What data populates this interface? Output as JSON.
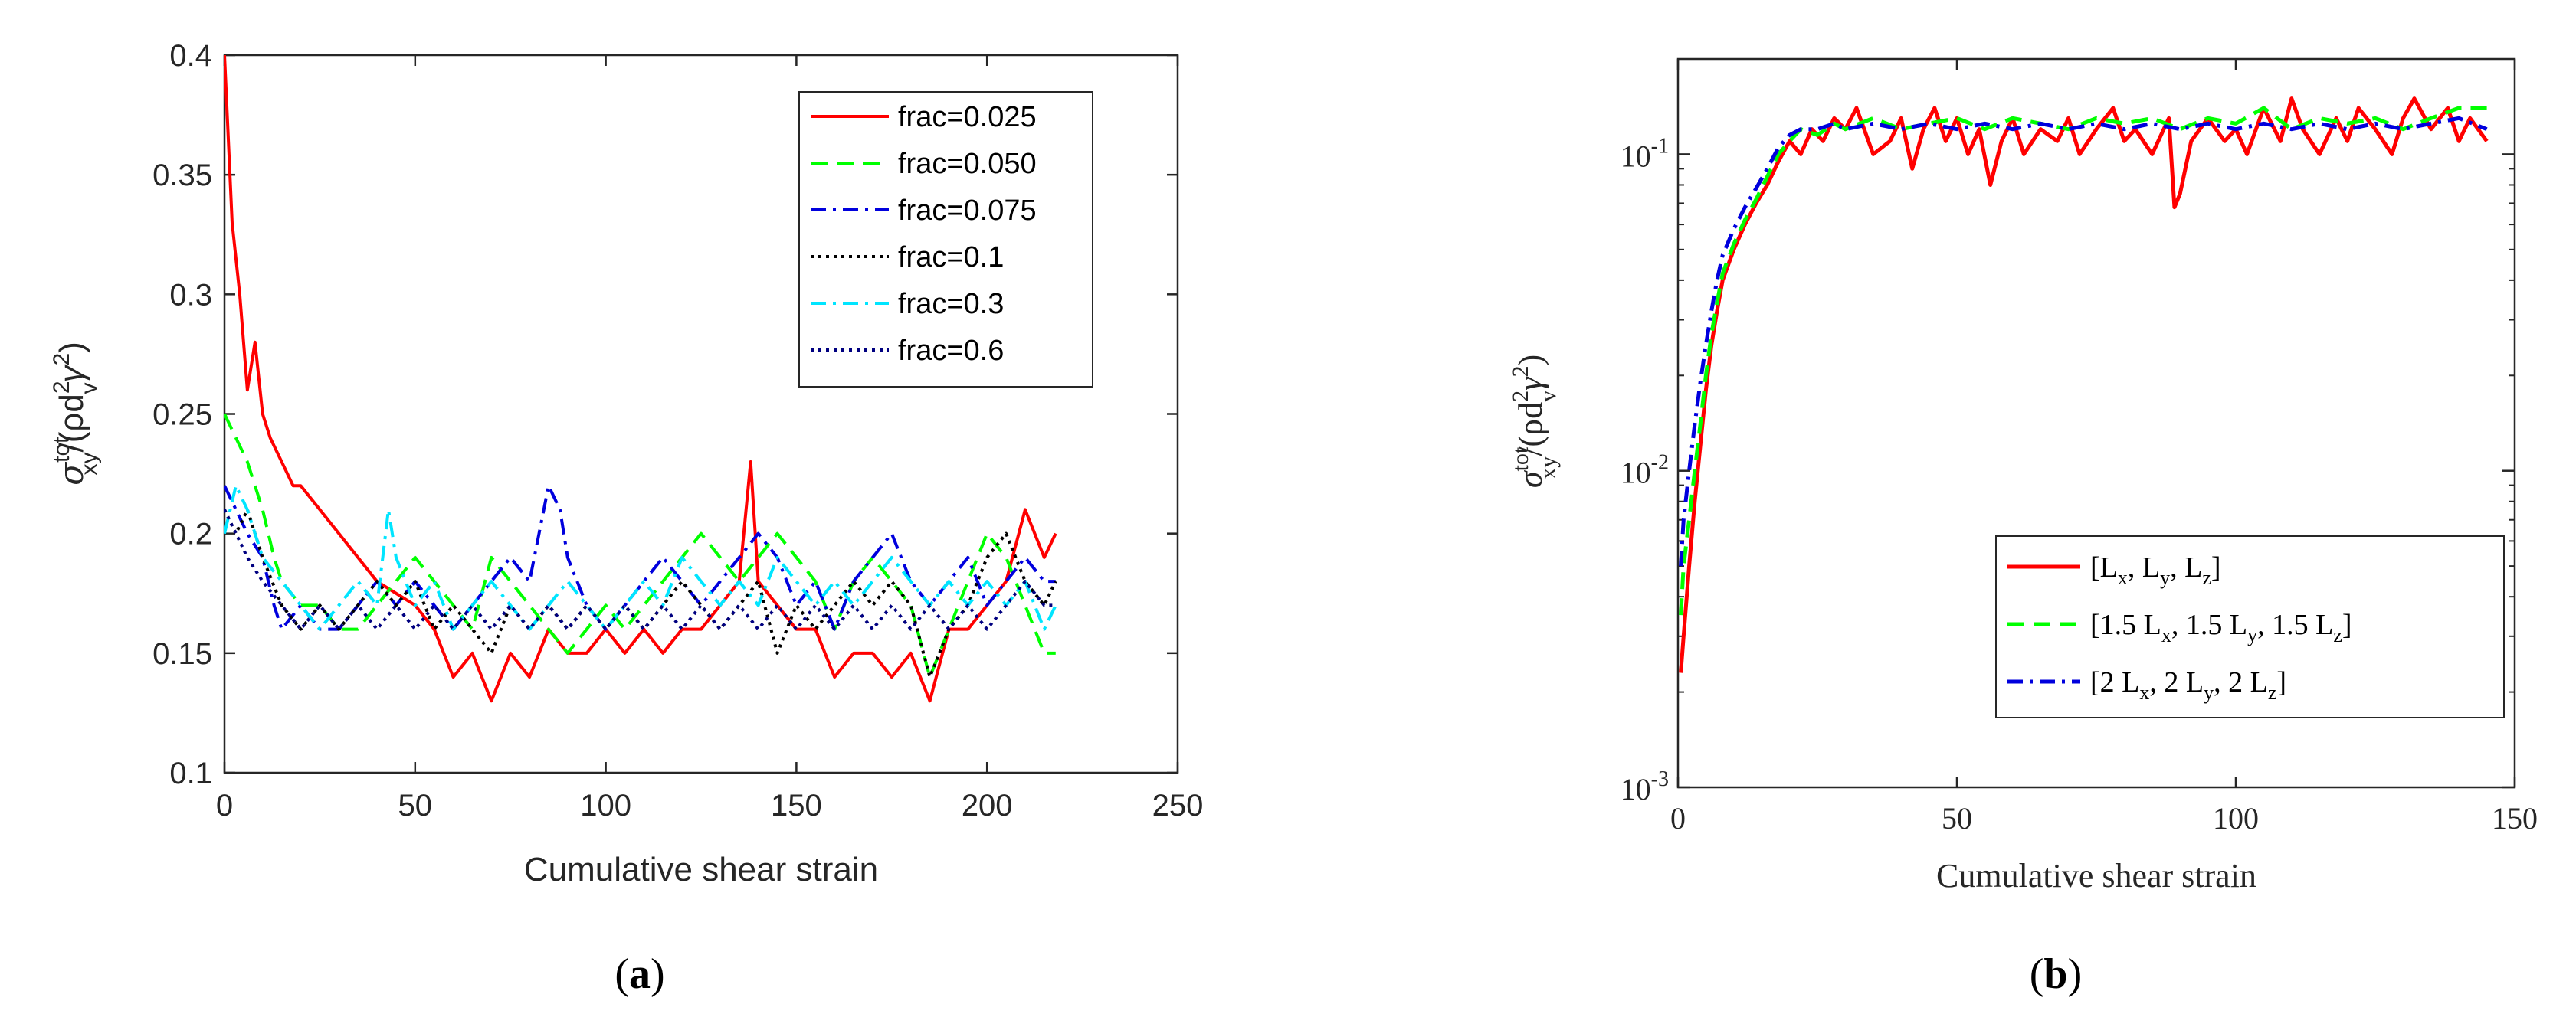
{
  "chart_data": [
    {
      "panel": "a",
      "type": "line",
      "title": "",
      "xlabel": "Cumulative shear strain",
      "ylabel_base": "σ",
      "ylabel_sup": "tot",
      "ylabel_sub": "xy",
      "ylabel_rest": "/(ρd",
      "ylabel_sup2": "2",
      "ylabel_sub2": "v",
      "ylabel_gamma": "γ",
      "ylabel_sup3": "2",
      "ylabel_close": ")",
      "xlim": [
        0,
        250
      ],
      "ylim": [
        0.1,
        0.4
      ],
      "xticks": [
        0,
        50,
        100,
        150,
        200,
        250
      ],
      "xtick_labels": [
        "0",
        "50",
        "100",
        "150",
        "200",
        "250"
      ],
      "yticks": [
        0.1,
        0.15,
        0.2,
        0.25,
        0.3,
        0.35,
        0.4
      ],
      "ytick_labels": [
        "0.1",
        "0.15",
        "0.2",
        "0.25",
        "0.3",
        "0.35",
        "0.4"
      ],
      "legend_position": "top-right",
      "series": [
        {
          "name": "frac=0.025",
          "color": "#ff0000",
          "dash": "solid",
          "x": [
            0,
            2,
            4,
            6,
            8,
            10,
            12,
            15,
            18,
            20,
            25,
            30,
            35,
            40,
            45,
            50,
            55,
            60,
            65,
            70,
            75,
            80,
            85,
            90,
            95,
            100,
            105,
            110,
            115,
            120,
            125,
            130,
            135,
            138,
            140,
            145,
            150,
            155,
            160,
            165,
            170,
            175,
            180,
            185,
            190,
            195,
            200,
            205,
            210,
            215,
            218
          ],
          "y": [
            0.4,
            0.33,
            0.3,
            0.26,
            0.28,
            0.25,
            0.24,
            0.23,
            0.22,
            0.22,
            0.21,
            0.2,
            0.19,
            0.18,
            0.175,
            0.17,
            0.16,
            0.14,
            0.15,
            0.13,
            0.15,
            0.14,
            0.16,
            0.15,
            0.15,
            0.16,
            0.15,
            0.16,
            0.15,
            0.16,
            0.16,
            0.17,
            0.18,
            0.23,
            0.18,
            0.17,
            0.16,
            0.16,
            0.14,
            0.15,
            0.15,
            0.14,
            0.15,
            0.13,
            0.16,
            0.16,
            0.17,
            0.18,
            0.21,
            0.19,
            0.2
          ]
        },
        {
          "name": "frac=0.050",
          "color": "#00ff00",
          "dash": "dashed",
          "x": [
            0,
            3,
            6,
            10,
            13,
            15,
            20,
            25,
            30,
            35,
            40,
            45,
            50,
            55,
            60,
            65,
            70,
            75,
            80,
            85,
            90,
            95,
            100,
            105,
            110,
            115,
            120,
            125,
            130,
            135,
            140,
            145,
            150,
            155,
            160,
            165,
            170,
            175,
            180,
            185,
            190,
            195,
            200,
            205,
            210,
            215,
            218
          ],
          "y": [
            0.25,
            0.24,
            0.23,
            0.21,
            0.19,
            0.18,
            0.17,
            0.17,
            0.16,
            0.16,
            0.17,
            0.18,
            0.19,
            0.18,
            0.17,
            0.16,
            0.19,
            0.18,
            0.17,
            0.16,
            0.15,
            0.16,
            0.17,
            0.16,
            0.17,
            0.18,
            0.19,
            0.2,
            0.19,
            0.18,
            0.19,
            0.2,
            0.19,
            0.18,
            0.16,
            0.18,
            0.19,
            0.18,
            0.17,
            0.14,
            0.16,
            0.18,
            0.2,
            0.19,
            0.17,
            0.15,
            0.15
          ]
        },
        {
          "name": "frac=0.075",
          "color": "#0000dd",
          "dash": "dashdot",
          "x": [
            0,
            3,
            6,
            10,
            13,
            15,
            20,
            25,
            30,
            35,
            40,
            45,
            50,
            55,
            60,
            65,
            70,
            75,
            80,
            85,
            88,
            90,
            95,
            100,
            105,
            110,
            115,
            120,
            125,
            130,
            135,
            140,
            145,
            150,
            155,
            160,
            165,
            170,
            175,
            180,
            185,
            190,
            195,
            200,
            205,
            210,
            215,
            218
          ],
          "y": [
            0.22,
            0.21,
            0.2,
            0.19,
            0.17,
            0.16,
            0.17,
            0.16,
            0.16,
            0.17,
            0.18,
            0.17,
            0.18,
            0.17,
            0.16,
            0.17,
            0.18,
            0.19,
            0.18,
            0.22,
            0.21,
            0.19,
            0.17,
            0.16,
            0.17,
            0.18,
            0.19,
            0.18,
            0.17,
            0.18,
            0.19,
            0.2,
            0.19,
            0.17,
            0.18,
            0.16,
            0.18,
            0.19,
            0.2,
            0.18,
            0.17,
            0.18,
            0.19,
            0.17,
            0.18,
            0.19,
            0.18,
            0.18
          ]
        },
        {
          "name": "frac=0.1",
          "color": "#000000",
          "dash": "dotted",
          "x": [
            0,
            3,
            6,
            10,
            15,
            20,
            25,
            30,
            35,
            40,
            45,
            50,
            55,
            60,
            65,
            70,
            75,
            80,
            85,
            90,
            95,
            100,
            105,
            110,
            115,
            120,
            125,
            130,
            135,
            140,
            145,
            150,
            155,
            160,
            165,
            170,
            175,
            180,
            185,
            190,
            195,
            200,
            205,
            210,
            215,
            218
          ],
          "y": [
            0.21,
            0.2,
            0.21,
            0.19,
            0.17,
            0.16,
            0.17,
            0.16,
            0.17,
            0.18,
            0.17,
            0.18,
            0.16,
            0.17,
            0.16,
            0.15,
            0.17,
            0.16,
            0.17,
            0.16,
            0.17,
            0.16,
            0.17,
            0.16,
            0.17,
            0.18,
            0.17,
            0.16,
            0.17,
            0.18,
            0.15,
            0.17,
            0.16,
            0.17,
            0.18,
            0.17,
            0.18,
            0.17,
            0.14,
            0.16,
            0.17,
            0.19,
            0.2,
            0.18,
            0.17,
            0.18
          ]
        },
        {
          "name": "frac=0.3",
          "color": "#00e5ff",
          "dash": "dashdot",
          "x": [
            0,
            3,
            6,
            10,
            15,
            20,
            25,
            30,
            35,
            40,
            43,
            45,
            50,
            55,
            60,
            65,
            70,
            75,
            80,
            85,
            90,
            95,
            100,
            105,
            110,
            115,
            120,
            125,
            130,
            135,
            140,
            145,
            150,
            155,
            160,
            165,
            170,
            175,
            180,
            185,
            190,
            195,
            200,
            205,
            210,
            215,
            218
          ],
          "y": [
            0.2,
            0.22,
            0.21,
            0.19,
            0.18,
            0.17,
            0.16,
            0.17,
            0.18,
            0.17,
            0.21,
            0.19,
            0.17,
            0.18,
            0.16,
            0.17,
            0.18,
            0.17,
            0.16,
            0.17,
            0.18,
            0.17,
            0.16,
            0.17,
            0.18,
            0.17,
            0.19,
            0.18,
            0.17,
            0.18,
            0.17,
            0.19,
            0.18,
            0.17,
            0.18,
            0.17,
            0.18,
            0.19,
            0.18,
            0.17,
            0.18,
            0.17,
            0.18,
            0.17,
            0.18,
            0.16,
            0.17
          ]
        },
        {
          "name": "frac=0.6",
          "color": "#000080",
          "dash": "dotted",
          "x": [
            0,
            3,
            6,
            10,
            15,
            20,
            25,
            30,
            35,
            40,
            45,
            50,
            55,
            60,
            65,
            70,
            75,
            80,
            85,
            90,
            95,
            100,
            105,
            110,
            115,
            120,
            125,
            130,
            135,
            140,
            145,
            150,
            155,
            160,
            165,
            170,
            175,
            180,
            185,
            190,
            195,
            200,
            205,
            210,
            215,
            218
          ],
          "y": [
            0.21,
            0.2,
            0.19,
            0.18,
            0.17,
            0.16,
            0.17,
            0.16,
            0.17,
            0.16,
            0.17,
            0.16,
            0.17,
            0.16,
            0.17,
            0.16,
            0.17,
            0.16,
            0.17,
            0.16,
            0.17,
            0.16,
            0.17,
            0.16,
            0.17,
            0.16,
            0.17,
            0.16,
            0.17,
            0.16,
            0.17,
            0.16,
            0.17,
            0.16,
            0.17,
            0.16,
            0.17,
            0.16,
            0.17,
            0.16,
            0.17,
            0.16,
            0.17,
            0.18,
            0.17,
            0.17
          ]
        }
      ]
    },
    {
      "panel": "b",
      "type": "line",
      "title": "",
      "xlabel": "Cumulative shear strain",
      "ylabel_base": "σ",
      "ylabel_sup": "tot",
      "ylabel_sub": "xy",
      "ylabel_rest": "/(ρd",
      "ylabel_sup2": "2",
      "ylabel_sub2": "v",
      "ylabel_gamma": "γ",
      "ylabel_sup3": "2",
      "ylabel_close": ")",
      "xlim": [
        0,
        150
      ],
      "ylim": [
        0.001,
        0.2
      ],
      "yscale": "log",
      "xticks": [
        0,
        50,
        100,
        150
      ],
      "xtick_labels": [
        "0",
        "50",
        "100",
        "150"
      ],
      "yticks_major": [
        0.001,
        0.01,
        0.1
      ],
      "ytick_labels": [
        {
          "base": "10",
          "exp": "-3"
        },
        {
          "base": "10",
          "exp": "-2"
        },
        {
          "base": "10",
          "exp": "-1"
        }
      ],
      "legend_position": "bottom-right",
      "legend_entries": [
        {
          "parts": [
            "[L",
            "x",
            ", L",
            "y",
            ", L",
            "z",
            "]"
          ]
        },
        {
          "parts": [
            "[1.5 L",
            "x",
            ", 1.5 L",
            "y",
            ", 1.5 L",
            "z",
            "]"
          ]
        },
        {
          "parts": [
            "[2 L",
            "x",
            ", 2 L",
            "y",
            ", 2 L",
            "z",
            "]"
          ]
        }
      ],
      "series": [
        {
          "name": "[Lx, Ly, Lz]",
          "color": "#ff0000",
          "dash": "solid",
          "x": [
            0.5,
            1,
            2,
            3,
            4,
            5,
            6,
            7,
            8,
            10,
            12,
            14,
            16,
            18,
            20,
            22,
            24,
            26,
            28,
            30,
            32,
            35,
            38,
            40,
            42,
            44,
            46,
            48,
            50,
            52,
            54,
            56,
            58,
            60,
            62,
            65,
            68,
            70,
            72,
            75,
            78,
            80,
            82,
            85,
            88,
            89,
            90,
            92,
            95,
            98,
            100,
            102,
            105,
            108,
            110,
            112,
            115,
            118,
            120,
            122,
            125,
            128,
            130,
            132,
            135,
            138,
            140,
            142,
            145
          ],
          "y": [
            0.0023,
            0.003,
            0.005,
            0.008,
            0.012,
            0.018,
            0.025,
            0.032,
            0.04,
            0.05,
            0.06,
            0.07,
            0.08,
            0.095,
            0.11,
            0.1,
            0.12,
            0.11,
            0.13,
            0.12,
            0.14,
            0.1,
            0.11,
            0.13,
            0.09,
            0.12,
            0.14,
            0.11,
            0.13,
            0.1,
            0.12,
            0.08,
            0.11,
            0.13,
            0.1,
            0.12,
            0.11,
            0.13,
            0.1,
            0.12,
            0.14,
            0.11,
            0.12,
            0.1,
            0.13,
            0.068,
            0.075,
            0.11,
            0.13,
            0.11,
            0.12,
            0.1,
            0.14,
            0.11,
            0.15,
            0.12,
            0.1,
            0.13,
            0.11,
            0.14,
            0.12,
            0.1,
            0.13,
            0.15,
            0.12,
            0.14,
            0.11,
            0.13,
            0.11
          ]
        },
        {
          "name": "[1.5Lx, 1.5Ly, 1.5Lz]",
          "color": "#00ff00",
          "dash": "dashed",
          "x": [
            0.5,
            1,
            2,
            3,
            4,
            5,
            6,
            7,
            8,
            10,
            12,
            14,
            16,
            18,
            20,
            22,
            25,
            28,
            30,
            35,
            40,
            45,
            50,
            55,
            60,
            65,
            70,
            75,
            80,
            85,
            90,
            95,
            100,
            105,
            110,
            115,
            120,
            125,
            130,
            135,
            140,
            145
          ],
          "y": [
            0.0035,
            0.005,
            0.007,
            0.01,
            0.014,
            0.02,
            0.027,
            0.034,
            0.042,
            0.052,
            0.062,
            0.072,
            0.085,
            0.1,
            0.11,
            0.12,
            0.115,
            0.125,
            0.12,
            0.13,
            0.12,
            0.125,
            0.13,
            0.12,
            0.13,
            0.125,
            0.12,
            0.13,
            0.125,
            0.13,
            0.12,
            0.13,
            0.125,
            0.14,
            0.12,
            0.13,
            0.125,
            0.13,
            0.12,
            0.13,
            0.14,
            0.14
          ]
        },
        {
          "name": "[2Lx, 2Ly, 2Lz]",
          "color": "#0000dd",
          "dash": "dashdot",
          "x": [
            0.5,
            1,
            2,
            3,
            4,
            5,
            6,
            7,
            8,
            10,
            12,
            14,
            16,
            18,
            20,
            22,
            25,
            28,
            30,
            35,
            40,
            45,
            50,
            55,
            60,
            65,
            70,
            75,
            80,
            85,
            90,
            95,
            100,
            105,
            110,
            115,
            120,
            125,
            130,
            135,
            140,
            145
          ],
          "y": [
            0.005,
            0.007,
            0.01,
            0.014,
            0.019,
            0.025,
            0.032,
            0.04,
            0.048,
            0.058,
            0.068,
            0.078,
            0.09,
            0.105,
            0.115,
            0.12,
            0.12,
            0.125,
            0.12,
            0.125,
            0.12,
            0.125,
            0.12,
            0.125,
            0.12,
            0.125,
            0.12,
            0.125,
            0.12,
            0.125,
            0.12,
            0.125,
            0.12,
            0.125,
            0.12,
            0.125,
            0.12,
            0.125,
            0.12,
            0.125,
            0.13,
            0.12
          ]
        }
      ]
    }
  ],
  "captions": [
    {
      "open": "(",
      "letter": "a",
      "close": ")"
    },
    {
      "open": "(",
      "letter": "b",
      "close": ")"
    }
  ]
}
